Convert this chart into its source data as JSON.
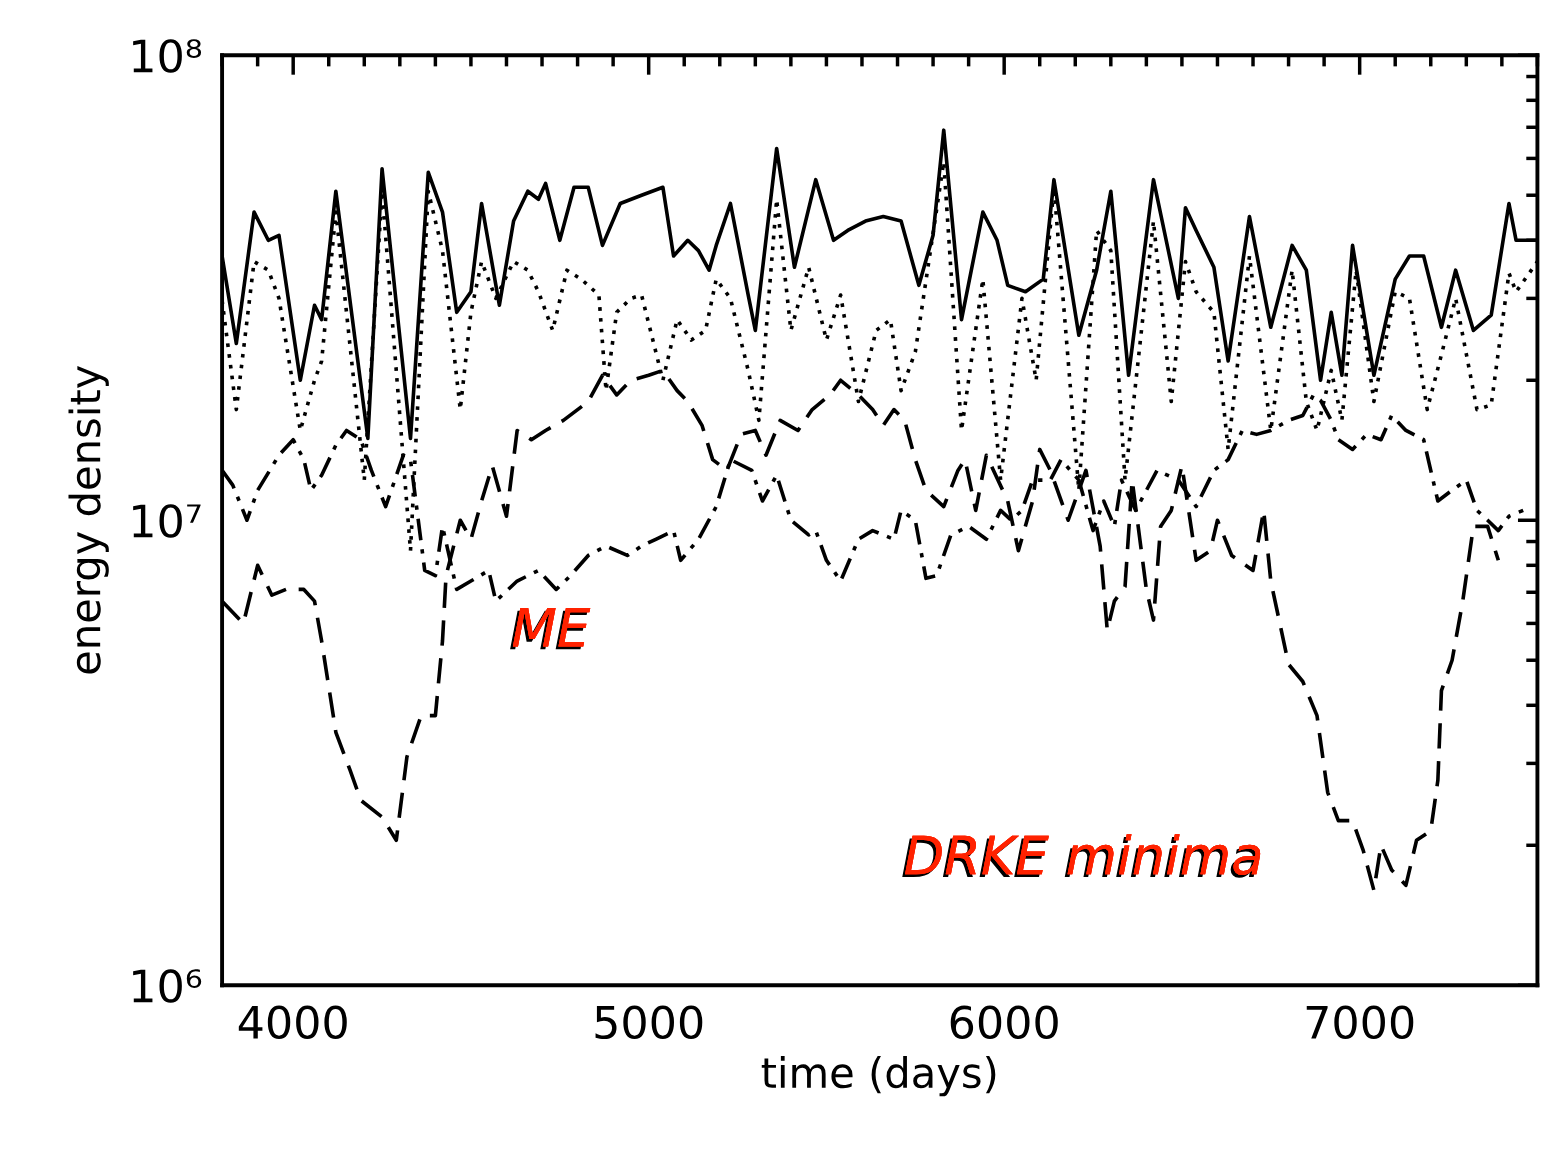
{
  "chart_data": {
    "type": "line",
    "xlabel": "time (days)",
    "ylabel": "energy density",
    "log": "y",
    "xlim": [
      3800,
      7500
    ],
    "xticks": [
      4000,
      5000,
      6000,
      7000
    ],
    "ylim": [
      1000000,
      100000000
    ],
    "yticks": [
      {
        "value": 1000000,
        "label": "10⁶"
      },
      {
        "value": 10000000,
        "label": "10⁷"
      },
      {
        "value": 100000000,
        "label": "10⁸"
      }
    ],
    "grid": false,
    "annotations": [
      "ME",
      "DRKE minima"
    ],
    "series": [
      {
        "color": "#000000",
        "line_style": "solid",
        "x": [
          3800,
          3840,
          3890,
          3930,
          3960,
          4020,
          4060,
          4080,
          4120,
          4210,
          4250,
          4330,
          4380,
          4420,
          4460,
          4500,
          4530,
          4580,
          4620,
          4660,
          4690,
          4710,
          4750,
          4790,
          4830,
          4870,
          4920,
          4980,
          5040,
          5070,
          5110,
          5140,
          5170,
          5190,
          5230,
          5280,
          5300,
          5360,
          5410,
          5470,
          5520,
          5560,
          5610,
          5660,
          5710,
          5760,
          5800,
          5830,
          5880,
          5940,
          5980,
          6010,
          6060,
          6110,
          6140,
          6210,
          6260,
          6300,
          6350,
          6420,
          6490,
          6510,
          6540,
          6590,
          6630,
          6690,
          6750,
          6810,
          6850,
          6890,
          6920,
          6950,
          6980,
          7040,
          7100,
          7140,
          7180,
          7230,
          7270,
          7320,
          7370,
          7420,
          7440,
          7500
        ],
        "values": [
          37000000,
          24000000,
          46000000,
          40000000,
          41000000,
          20000000,
          29000000,
          27000000,
          51000000,
          15000000,
          57000000,
          15000000,
          56000000,
          46000000,
          28000000,
          31000000,
          48000000,
          29000000,
          44000000,
          51000000,
          49000000,
          53000000,
          40000000,
          52000000,
          52000000,
          39000000,
          48000000,
          50000000,
          52000000,
          37000000,
          40000000,
          38000000,
          34500000,
          39000000,
          48000000,
          30500000,
          25600000,
          63000000,
          35000000,
          54000000,
          40000000,
          42000000,
          44000000,
          45000000,
          44000000,
          32000000,
          41000000,
          69000000,
          27000000,
          46000000,
          40000000,
          32000000,
          31000000,
          33000000,
          54000000,
          25000000,
          34500000,
          51000000,
          20500000,
          54000000,
          30000000,
          47000000,
          42000000,
          35000000,
          22000000,
          45000000,
          26000000,
          39000000,
          34500000,
          20000000,
          28000000,
          20500000,
          39000000,
          20500000,
          33000000,
          37000000,
          37000000,
          26000000,
          34500000,
          25600000,
          27600000,
          48000000,
          40000000,
          40000000
        ]
      },
      {
        "color": "#000000",
        "line_style": "dotted",
        "x": [
          3800,
          3840,
          3890,
          3930,
          3960,
          4020,
          4060,
          4080,
          4120,
          4200,
          4250,
          4330,
          4380,
          4420,
          4470,
          4500,
          4530,
          4570,
          4620,
          4660,
          4690,
          4730,
          4770,
          4810,
          4860,
          4880,
          4910,
          4950,
          4980,
          5040,
          5080,
          5120,
          5160,
          5190,
          5230,
          5280,
          5310,
          5360,
          5400,
          5450,
          5500,
          5540,
          5590,
          5640,
          5680,
          5710,
          5750,
          5830,
          5880,
          5940,
          5990,
          6050,
          6090,
          6140,
          6210,
          6260,
          6300,
          6340,
          6420,
          6470,
          6510,
          6540,
          6590,
          6630,
          6690,
          6750,
          6810,
          6850,
          6880,
          6920,
          6950,
          6990,
          7040,
          7100,
          7140,
          7190,
          7230,
          7270,
          7330,
          7370,
          7420,
          7440,
          7500
        ],
        "values": [
          29700000,
          17300000,
          36000000,
          34500000,
          30000000,
          15600000,
          20000000,
          22000000,
          46000000,
          12200000,
          51000000,
          8600000,
          51000000,
          38000000,
          17300000,
          28000000,
          36000000,
          30000000,
          36000000,
          34500000,
          31000000,
          25600000,
          34500000,
          33000000,
          30500000,
          19000000,
          28000000,
          30000000,
          30500000,
          20000000,
          27000000,
          24400000,
          25600000,
          33000000,
          30000000,
          21000000,
          16400000,
          49000000,
          25600000,
          35000000,
          24400000,
          30500000,
          18000000,
          25600000,
          27000000,
          19000000,
          23000000,
          59000000,
          15600000,
          33000000,
          12200000,
          30000000,
          20000000,
          52000000,
          11600000,
          42000000,
          38000000,
          12200000,
          44000000,
          18000000,
          36000000,
          31000000,
          28000000,
          14200000,
          37000000,
          15600000,
          34500000,
          18000000,
          15600000,
          21000000,
          16400000,
          34500000,
          18000000,
          31000000,
          30000000,
          17300000,
          22700000,
          30000000,
          17300000,
          17700000,
          34000000,
          31000000,
          36000000
        ]
      },
      {
        "color": "#000000",
        "line_style": "dashed",
        "x": [
          3800,
          3860,
          3900,
          3940,
          3980,
          4030,
          4060,
          4080,
          4120,
          4160,
          4190,
          4250,
          4290,
          4320,
          4360,
          4400,
          4420,
          4430,
          4470,
          4500,
          4530,
          4560,
          4600,
          4630,
          4670,
          4710,
          4760,
          4830,
          4870,
          4910,
          4950,
          5000,
          5040,
          5080,
          5110,
          5150,
          5180,
          5220,
          5260,
          5300,
          5330,
          5370,
          5420,
          5460,
          5510,
          5540,
          5590,
          5630,
          5660,
          5690,
          5720,
          5750,
          5780,
          5830,
          5870,
          5890,
          5920,
          5950,
          6010,
          6040,
          6080,
          6100,
          6130,
          6180,
          6230,
          6270,
          6290,
          6310,
          6340,
          6360,
          6400,
          6420,
          6440,
          6470,
          6500,
          6540,
          6580,
          6600,
          6640,
          6700,
          6730,
          6750,
          6800,
          6840,
          6880,
          6910,
          6940,
          6980,
          7010,
          7040,
          7060,
          7090,
          7130,
          7160,
          7200,
          7220,
          7230,
          7260,
          7290,
          7320,
          7360,
          7390
        ],
        "values": [
          6700000,
          6000000,
          8000000,
          6900000,
          7100000,
          7100000,
          6700000,
          5500000,
          3500000,
          2900000,
          2500000,
          2300000,
          2050000,
          3100000,
          3800000,
          3800000,
          5500000,
          7600000,
          10000000,
          9100000,
          11000000,
          13100000,
          10200000,
          15600000,
          14900000,
          15600000,
          16400000,
          18000000,
          20500000,
          18600000,
          20000000,
          20500000,
          21000000,
          19000000,
          18000000,
          16000000,
          13500000,
          12800000,
          15300000,
          15600000,
          13800000,
          16400000,
          15600000,
          17300000,
          18600000,
          20000000,
          18600000,
          17300000,
          16000000,
          17300000,
          16400000,
          13500000,
          11600000,
          10700000,
          12800000,
          13500000,
          10500000,
          13800000,
          11000000,
          8600000,
          11000000,
          14200000,
          12800000,
          10000000,
          12800000,
          8800000,
          5800000,
          6700000,
          7200000,
          12200000,
          7100000,
          6100000,
          9700000,
          10500000,
          13100000,
          8200000,
          8600000,
          10000000,
          8400000,
          7800000,
          10500000,
          7400000,
          4900000,
          4500000,
          3800000,
          2600000,
          2260000,
          2260000,
          1950000,
          1600000,
          2000000,
          1770000,
          1640000,
          2050000,
          2150000,
          2760000,
          4300000,
          5000000,
          6700000,
          9700000,
          9700000,
          8200000
        ]
      },
      {
        "color": "#000000",
        "line_style": "dashdot",
        "x": [
          3800,
          3830,
          3870,
          3900,
          3960,
          4000,
          4030,
          4050,
          4080,
          4120,
          4150,
          4190,
          4220,
          4260,
          4310,
          4330,
          4370,
          4400,
          4420,
          4460,
          4500,
          4550,
          4570,
          4630,
          4690,
          4740,
          4780,
          4830,
          4880,
          4940,
          4980,
          5020,
          5070,
          5090,
          5140,
          5190,
          5230,
          5290,
          5320,
          5360,
          5400,
          5450,
          5470,
          5500,
          5540,
          5590,
          5630,
          5690,
          5710,
          5750,
          5780,
          5810,
          5850,
          5900,
          5950,
          5990,
          6020,
          6050,
          6080,
          6130,
          6160,
          6210,
          6250,
          6280,
          6310,
          6330,
          6370,
          6430,
          6490,
          6540,
          6590,
          6630,
          6670,
          6710,
          6750,
          6800,
          6840,
          6870,
          6890,
          6920,
          6940,
          6980,
          7020,
          7060,
          7090,
          7130,
          7180,
          7220,
          7260,
          7300,
          7330,
          7360,
          7390,
          7420,
          7460
        ],
        "values": [
          12800000,
          11900000,
          10000000,
          11600000,
          13800000,
          14900000,
          13500000,
          11600000,
          12500000,
          14500000,
          15600000,
          14900000,
          12800000,
          10700000,
          13800000,
          13500000,
          7800000,
          7600000,
          9700000,
          7100000,
          7400000,
          7800000,
          6700000,
          7400000,
          7800000,
          7100000,
          7600000,
          8400000,
          8800000,
          8400000,
          8800000,
          9100000,
          9500000,
          8200000,
          9100000,
          10700000,
          13500000,
          12800000,
          11000000,
          12500000,
          10000000,
          9300000,
          9500000,
          8200000,
          7400000,
          9100000,
          9500000,
          9100000,
          10500000,
          10000000,
          7500000,
          7600000,
          9300000,
          9700000,
          9100000,
          10500000,
          10000000,
          10500000,
          12200000,
          12200000,
          13500000,
          12200000,
          9500000,
          11000000,
          9700000,
          12200000,
          10500000,
          12800000,
          12200000,
          10700000,
          12800000,
          13500000,
          15600000,
          15300000,
          15600000,
          16400000,
          16800000,
          18600000,
          18100000,
          16400000,
          14900000,
          14200000,
          15300000,
          14900000,
          16800000,
          15600000,
          14900000,
          11000000,
          11600000,
          12200000,
          10500000,
          10000000,
          9500000,
          10200000,
          10500000
        ]
      }
    ]
  }
}
